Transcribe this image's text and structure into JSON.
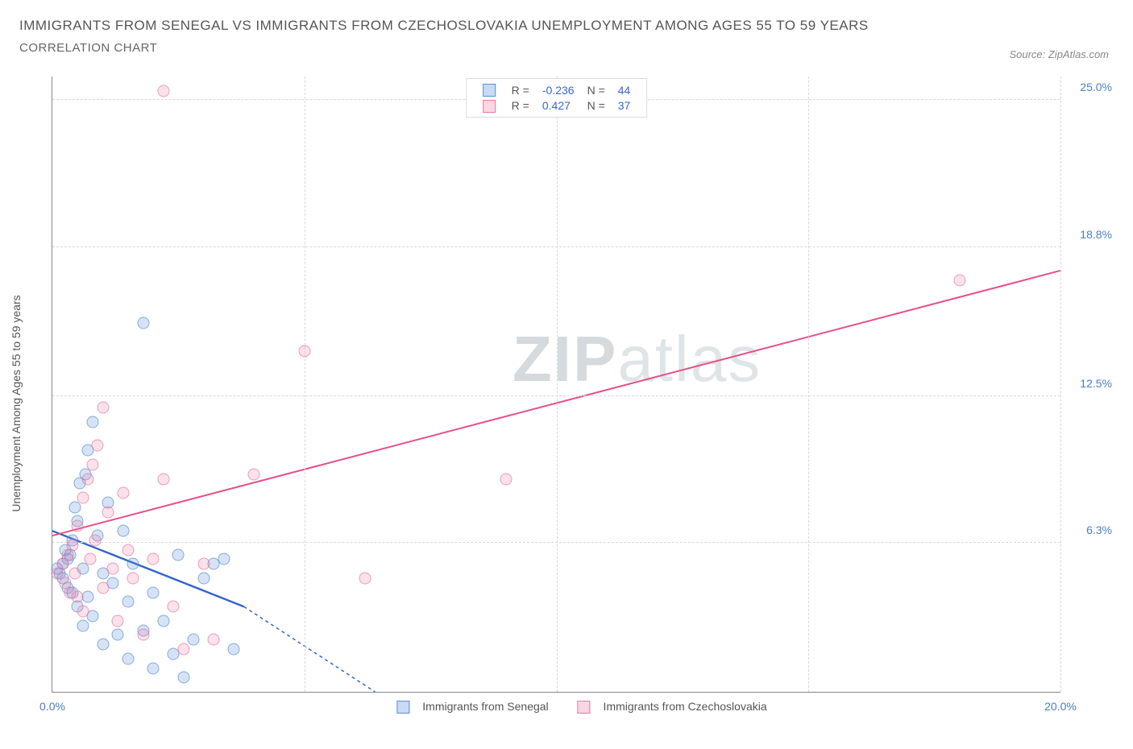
{
  "title": "IMMIGRANTS FROM SENEGAL VS IMMIGRANTS FROM CZECHOSLOVAKIA UNEMPLOYMENT AMONG AGES 55 TO 59 YEARS",
  "subtitle": "CORRELATION CHART",
  "source": "Source: ZipAtlas.com",
  "y_axis_label": "Unemployment Among Ages 55 to 59 years",
  "watermark_bold": "ZIP",
  "watermark_light": "atlas",
  "chart": {
    "type": "scatter",
    "xlim": [
      0,
      20
    ],
    "ylim": [
      0,
      26
    ],
    "x_ticks": [
      {
        "v": 0,
        "label": "0.0%"
      },
      {
        "v": 20,
        "label": "20.0%"
      }
    ],
    "y_ticks": [
      {
        "v": 6.3,
        "label": "6.3%"
      },
      {
        "v": 12.5,
        "label": "12.5%"
      },
      {
        "v": 18.8,
        "label": "18.8%"
      },
      {
        "v": 25.0,
        "label": "25.0%"
      }
    ],
    "grid_h": [
      6.3,
      12.5,
      18.8,
      25.0
    ],
    "grid_v": [
      5,
      10,
      15,
      20
    ],
    "grid_color": "#d8d8d8",
    "background_color": "#ffffff",
    "series": [
      {
        "key": "a",
        "name": "Immigrants from Senegal",
        "color_fill": "rgba(100,150,220,0.35)",
        "color_stroke": "#5a8fd0",
        "R": "-0.236",
        "N": "44",
        "trend": {
          "x1": 0,
          "y1": 6.8,
          "x2": 3.8,
          "y2": 3.6,
          "dash_x2": 6.4,
          "dash_y2": 0,
          "stroke": "#3464c8",
          "width": 2.4
        },
        "points": [
          [
            0.1,
            5.2
          ],
          [
            0.15,
            5.0
          ],
          [
            0.2,
            5.4
          ],
          [
            0.2,
            4.8
          ],
          [
            0.25,
            6.0
          ],
          [
            0.3,
            5.6
          ],
          [
            0.3,
            4.4
          ],
          [
            0.35,
            5.8
          ],
          [
            0.4,
            6.4
          ],
          [
            0.4,
            4.2
          ],
          [
            0.5,
            7.2
          ],
          [
            0.5,
            3.6
          ],
          [
            0.55,
            8.8
          ],
          [
            0.6,
            5.2
          ],
          [
            0.6,
            2.8
          ],
          [
            0.7,
            10.2
          ],
          [
            0.7,
            4.0
          ],
          [
            0.8,
            11.4
          ],
          [
            0.8,
            3.2
          ],
          [
            0.9,
            6.6
          ],
          [
            1.0,
            2.0
          ],
          [
            1.0,
            5.0
          ],
          [
            1.1,
            8.0
          ],
          [
            1.2,
            4.6
          ],
          [
            1.3,
            2.4
          ],
          [
            1.4,
            6.8
          ],
          [
            1.5,
            3.8
          ],
          [
            1.5,
            1.4
          ],
          [
            1.6,
            5.4
          ],
          [
            1.8,
            2.6
          ],
          [
            1.8,
            15.6
          ],
          [
            2.0,
            4.2
          ],
          [
            2.0,
            1.0
          ],
          [
            2.2,
            3.0
          ],
          [
            2.4,
            1.6
          ],
          [
            2.5,
            5.8
          ],
          [
            2.6,
            0.6
          ],
          [
            2.8,
            2.2
          ],
          [
            3.0,
            4.8
          ],
          [
            3.2,
            5.4
          ],
          [
            3.4,
            5.6
          ],
          [
            3.6,
            1.8
          ],
          [
            0.45,
            7.8
          ],
          [
            0.65,
            9.2
          ]
        ]
      },
      {
        "key": "b",
        "name": "Immigrants from Czechoslovakia",
        "color_fill": "rgba(235,120,160,0.30)",
        "color_stroke": "#e67aa0",
        "R": "0.427",
        "N": "37",
        "trend": {
          "x1": 0,
          "y1": 6.6,
          "x2": 20,
          "y2": 17.8,
          "stroke": "#e84f8a",
          "width": 2.0
        },
        "points": [
          [
            0.1,
            5.0
          ],
          [
            0.2,
            5.4
          ],
          [
            0.25,
            4.6
          ],
          [
            0.3,
            5.8
          ],
          [
            0.35,
            4.2
          ],
          [
            0.4,
            6.2
          ],
          [
            0.45,
            5.0
          ],
          [
            0.5,
            7.0
          ],
          [
            0.5,
            4.0
          ],
          [
            0.6,
            8.2
          ],
          [
            0.6,
            3.4
          ],
          [
            0.7,
            9.0
          ],
          [
            0.75,
            5.6
          ],
          [
            0.8,
            9.6
          ],
          [
            0.85,
            6.4
          ],
          [
            0.9,
            10.4
          ],
          [
            1.0,
            12.0
          ],
          [
            1.0,
            4.4
          ],
          [
            1.1,
            7.6
          ],
          [
            1.2,
            5.2
          ],
          [
            1.3,
            3.0
          ],
          [
            1.4,
            8.4
          ],
          [
            1.5,
            6.0
          ],
          [
            1.6,
            4.8
          ],
          [
            1.8,
            2.4
          ],
          [
            2.0,
            5.6
          ],
          [
            2.2,
            9.0
          ],
          [
            2.4,
            3.6
          ],
          [
            2.6,
            1.8
          ],
          [
            3.0,
            5.4
          ],
          [
            3.2,
            2.2
          ],
          [
            4.0,
            9.2
          ],
          [
            5.0,
            14.4
          ],
          [
            6.2,
            4.8
          ],
          [
            9.0,
            9.0
          ],
          [
            18.0,
            17.4
          ],
          [
            2.2,
            25.4
          ]
        ]
      }
    ]
  },
  "legend_bottom": [
    {
      "key": "a",
      "label": "Immigrants from Senegal"
    },
    {
      "key": "b",
      "label": "Immigrants from Czechoslovakia"
    }
  ]
}
